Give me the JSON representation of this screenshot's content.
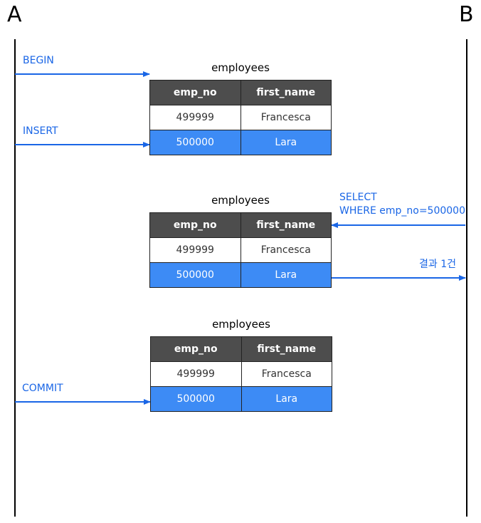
{
  "actors": {
    "a": "A",
    "b": "B"
  },
  "messages": {
    "begin": "BEGIN",
    "insert": "INSERT",
    "select_line1": "SELECT",
    "select_line2": "WHERE emp_no=500000",
    "result": "결과 1건",
    "commit": "COMMIT"
  },
  "tables": [
    {
      "caption": "employees",
      "headers": [
        "emp_no",
        "first_name"
      ],
      "rows": [
        [
          "499999",
          "Francesca"
        ],
        [
          "500000",
          "Lara"
        ]
      ]
    },
    {
      "caption": "employees",
      "headers": [
        "emp_no",
        "first_name"
      ],
      "rows": [
        [
          "499999",
          "Francesca"
        ],
        [
          "500000",
          "Lara"
        ]
      ]
    },
    {
      "caption": "employees",
      "headers": [
        "emp_no",
        "first_name"
      ],
      "rows": [
        [
          "499999",
          "Francesca"
        ],
        [
          "500000",
          "Lara"
        ]
      ]
    }
  ],
  "colors": {
    "arrow": "#1a66e6",
    "header_bg": "#4d4d4d",
    "highlight_row": "#3d8bf5"
  }
}
